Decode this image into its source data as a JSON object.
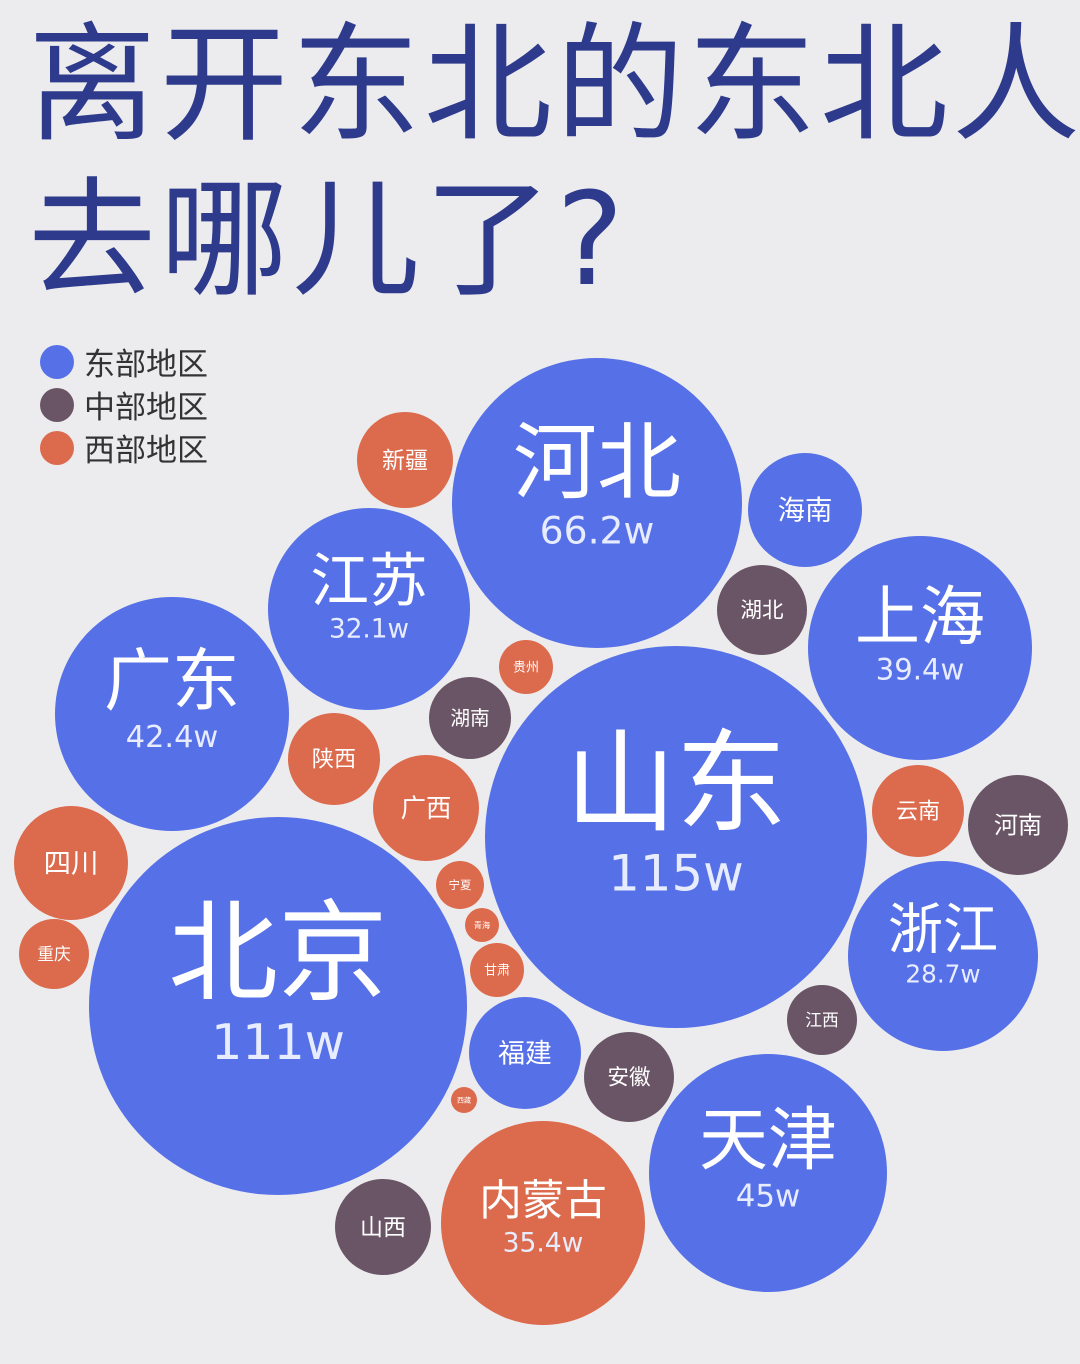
{
  "chart_data": {
    "type": "bubble",
    "title": "离开东北的东北人去哪儿了?",
    "legend": [
      {
        "name": "东部地区",
        "color": "#5670e8"
      },
      {
        "name": "中部地区",
        "color": "#6a5566"
      },
      {
        "name": "西部地区",
        "color": "#dc6a4c"
      }
    ],
    "bubbles": [
      {
        "name": "山东",
        "value": "115w",
        "region": "东部地区"
      },
      {
        "name": "北京",
        "value": "111w",
        "region": "东部地区"
      },
      {
        "name": "河北",
        "value": "66.2w",
        "region": "东部地区"
      },
      {
        "name": "天津",
        "value": "45w",
        "region": "东部地区"
      },
      {
        "name": "广东",
        "value": "42.4w",
        "region": "东部地区"
      },
      {
        "name": "上海",
        "value": "39.4w",
        "region": "东部地区"
      },
      {
        "name": "内蒙古",
        "value": "35.4w",
        "region": "西部地区"
      },
      {
        "name": "江苏",
        "value": "32.1w",
        "region": "东部地区"
      },
      {
        "name": "浙江",
        "value": "28.7w",
        "region": "东部地区"
      },
      {
        "name": "海南",
        "region": "东部地区"
      },
      {
        "name": "福建",
        "region": "东部地区"
      },
      {
        "name": "四川",
        "region": "西部地区"
      },
      {
        "name": "河南",
        "region": "中部地区"
      },
      {
        "name": "新疆",
        "region": "西部地区"
      },
      {
        "name": "陕西",
        "region": "西部地区"
      },
      {
        "name": "广西",
        "region": "西部地区"
      },
      {
        "name": "湖北",
        "region": "中部地区"
      },
      {
        "name": "湖南",
        "region": "中部地区"
      },
      {
        "name": "安徽",
        "region": "中部地区"
      },
      {
        "name": "山西",
        "region": "中部地区"
      },
      {
        "name": "云南",
        "region": "西部地区"
      },
      {
        "name": "江西",
        "region": "中部地区"
      },
      {
        "name": "重庆",
        "region": "西部地区"
      },
      {
        "name": "贵州",
        "region": "西部地区"
      },
      {
        "name": "宁夏",
        "region": "西部地区"
      },
      {
        "name": "甘肃",
        "region": "西部地区"
      },
      {
        "name": "青海",
        "region": "西部地区"
      },
      {
        "name": "西藏",
        "region": "西部地区"
      }
    ]
  }
}
